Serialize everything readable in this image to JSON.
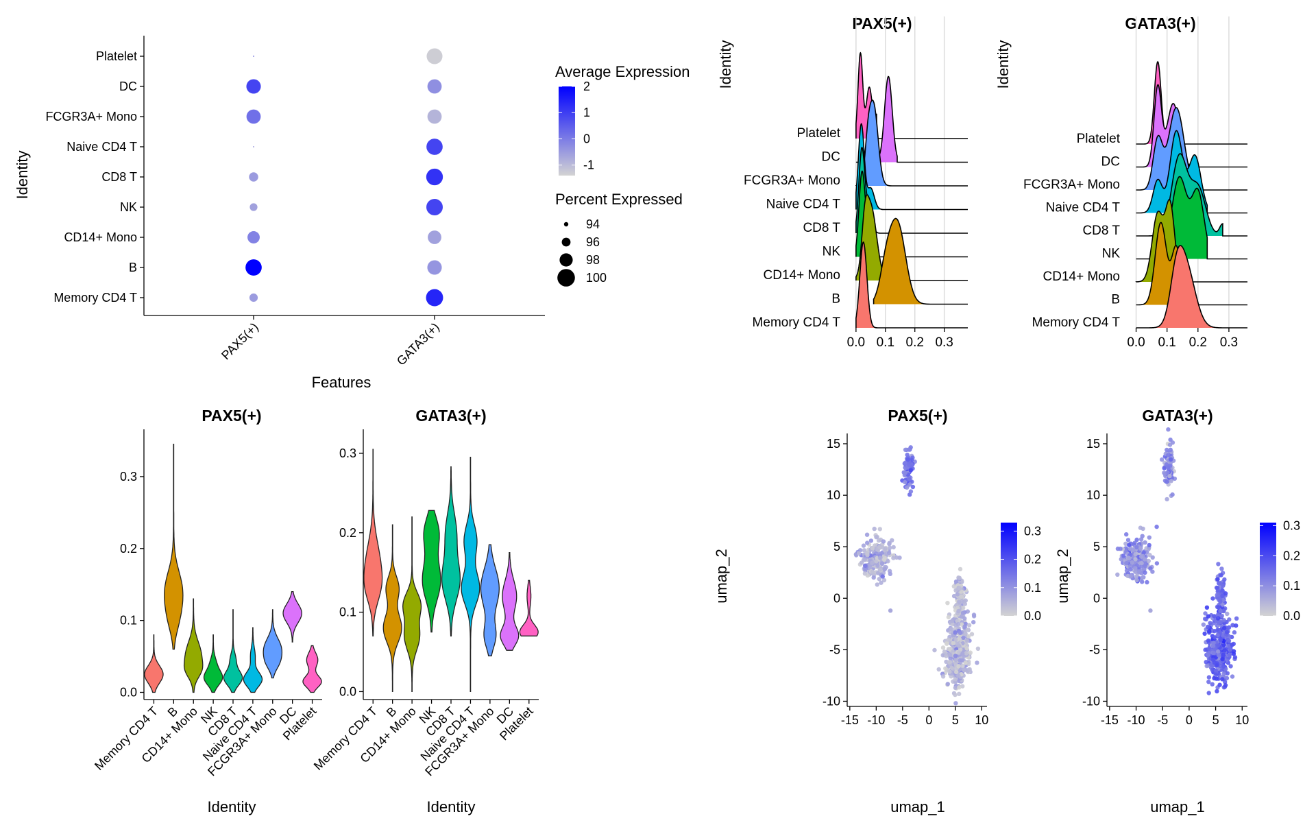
{
  "chart_data": [
    {
      "panel": "dotplot",
      "type": "scatter",
      "xlabel": "Features",
      "ylabel": "Identity",
      "features": [
        "PAX5(+)",
        "GATA3(+)"
      ],
      "identities": [
        "Platelet",
        "DC",
        "FCGR3A+ Mono",
        "Naive CD4 T",
        "CD8 T",
        "NK",
        "CD14+ Mono",
        "B",
        "Memory CD4 T"
      ],
      "points": [
        {
          "feature": "PAX5(+)",
          "identity": "Platelet",
          "avg_exp": -0.3,
          "pct": 92.6
        },
        {
          "feature": "PAX5(+)",
          "identity": "DC",
          "avg_exp": 0.9,
          "pct": 98.6
        },
        {
          "feature": "PAX5(+)",
          "identity": "FCGR3A+ Mono",
          "avg_exp": 0.2,
          "pct": 98.5
        },
        {
          "feature": "PAX5(+)",
          "identity": "Naive CD4 T",
          "avg_exp": -0.6,
          "pct": 92.6
        },
        {
          "feature": "PAX5(+)",
          "identity": "CD8 T",
          "avg_exp": -0.5,
          "pct": 96.2
        },
        {
          "feature": "PAX5(+)",
          "identity": "NK",
          "avg_exp": -0.6,
          "pct": 95.5
        },
        {
          "feature": "PAX5(+)",
          "identity": "CD14+ Mono",
          "avg_exp": -0.1,
          "pct": 97.6
        },
        {
          "feature": "PAX5(+)",
          "identity": "B",
          "avg_exp": 2.0,
          "pct": 99.4
        },
        {
          "feature": "PAX5(+)",
          "identity": "Memory CD4 T",
          "avg_exp": -0.5,
          "pct": 95.8
        },
        {
          "feature": "GATA3(+)",
          "identity": "Platelet",
          "avg_exp": -1.3,
          "pct": 99.2
        },
        {
          "feature": "GATA3(+)",
          "identity": "DC",
          "avg_exp": -0.3,
          "pct": 98.5
        },
        {
          "feature": "GATA3(+)",
          "identity": "FCGR3A+ Mono",
          "avg_exp": -0.9,
          "pct": 98.5
        },
        {
          "feature": "GATA3(+)",
          "identity": "Naive CD4 T",
          "avg_exp": 0.9,
          "pct": 99.4
        },
        {
          "feature": "GATA3(+)",
          "identity": "CD8 T",
          "avg_exp": 1.2,
          "pct": 99.6
        },
        {
          "feature": "GATA3(+)",
          "identity": "NK",
          "avg_exp": 0.9,
          "pct": 99.5
        },
        {
          "feature": "GATA3(+)",
          "identity": "CD14+ Mono",
          "avg_exp": -0.6,
          "pct": 98.2
        },
        {
          "feature": "GATA3(+)",
          "identity": "B",
          "avg_exp": -0.4,
          "pct": 98.6
        },
        {
          "feature": "GATA3(+)",
          "identity": "Memory CD4 T",
          "avg_exp": 1.4,
          "pct": 99.8
        }
      ],
      "color_legend": {
        "title": "Average Expression",
        "ticks": [
          2,
          1,
          0,
          -1
        ],
        "range": [
          -1.4,
          2.0
        ],
        "low": "#d3d3d3",
        "high": "#0000ff"
      },
      "size_legend": {
        "title": "Percent Expressed",
        "values": [
          94,
          96,
          98,
          100
        ]
      }
    },
    {
      "panel": "ridge",
      "type": "area",
      "title": "PAX5(+)",
      "ylabel": "Identity",
      "xticks": [
        0.0,
        0.1,
        0.2,
        0.3
      ],
      "xlim": [
        -0.03,
        0.38
      ],
      "tick_labels": [
        "0.0",
        "0.1",
        "0.2",
        "0.3"
      ],
      "identities": [
        "Platelet",
        "DC",
        "FCGR3A+ Mono",
        "Naive CD4 T",
        "CD8 T",
        "NK",
        "CD14+ Mono",
        "B",
        "Memory CD4 T"
      ],
      "series": [
        {
          "name": "Memory CD4 T",
          "color": "#F8766D",
          "peaks": [
            [
              0.025,
              0.012,
              1.0
            ]
          ],
          "max": 0.08
        },
        {
          "name": "B",
          "color": "#D39200",
          "peaks": [
            [
              0.14,
              0.028,
              0.9
            ],
            [
              0.1,
              0.02,
              0.3
            ]
          ],
          "min": 0.06,
          "max": 0.35
        },
        {
          "name": "CD14+ Mono",
          "color": "#93AA00",
          "peaks": [
            [
              0.05,
              0.02,
              0.9
            ],
            [
              0.03,
              0.01,
              0.4
            ]
          ],
          "max": 0.13
        },
        {
          "name": "NK",
          "color": "#00BA38",
          "peaks": [
            [
              0.02,
              0.01,
              1.0
            ],
            [
              0.04,
              0.01,
              0.3
            ]
          ],
          "max": 0.08
        },
        {
          "name": "CD8 T",
          "color": "#00C19F",
          "peaks": [
            [
              0.02,
              0.01,
              1.0
            ],
            [
              0.045,
              0.01,
              0.3
            ]
          ],
          "max": 0.11
        },
        {
          "name": "Naive CD4 T",
          "color": "#00B9E3",
          "peaks": [
            [
              0.018,
              0.01,
              1.0
            ],
            [
              0.05,
              0.012,
              0.25
            ]
          ],
          "max": 0.09
        },
        {
          "name": "FCGR3A+ Mono",
          "color": "#619CFF",
          "peaks": [
            [
              0.06,
              0.015,
              1.0
            ],
            [
              0.04,
              0.01,
              0.4
            ]
          ],
          "max": 0.12
        },
        {
          "name": "DC",
          "color": "#DB72FB",
          "peaks": [
            [
              0.11,
              0.013,
              1.0
            ],
            [
              0.05,
              0.012,
              0.4
            ]
          ],
          "max": 0.14
        },
        {
          "name": "Platelet",
          "color": "#FF61C3",
          "peaks": [
            [
              0.015,
              0.008,
              1.0
            ],
            [
              0.045,
              0.01,
              0.6
            ],
            [
              0.075,
              0.01,
              0.3
            ]
          ],
          "max": 0.07
        }
      ]
    },
    {
      "panel": "ridge",
      "type": "area",
      "title": "GATA3(+)",
      "ylabel": "Identity",
      "xticks": [
        0.0,
        0.1,
        0.2,
        0.3
      ],
      "xlim": [
        -0.03,
        0.36
      ],
      "tick_labels": [
        "0.0",
        "0.1",
        "0.2",
        "0.3"
      ],
      "identities": [
        "Platelet",
        "DC",
        "FCGR3A+ Mono",
        "Naive CD4 T",
        "CD8 T",
        "NK",
        "CD14+ Mono",
        "B",
        "Memory CD4 T"
      ],
      "series": [
        {
          "name": "Memory CD4 T",
          "color": "#F8766D",
          "peaks": [
            [
              0.16,
              0.03,
              1.0
            ],
            [
              0.13,
              0.02,
              0.6
            ]
          ],
          "max": 0.3
        },
        {
          "name": "B",
          "color": "#D39200",
          "peaks": [
            [
              0.08,
              0.018,
              1.0
            ],
            [
              0.13,
              0.015,
              0.7
            ]
          ],
          "max": 0.25
        },
        {
          "name": "CD14+ Mono",
          "color": "#93AA00",
          "peaks": [
            [
              0.07,
              0.018,
              0.9
            ],
            [
              0.11,
              0.015,
              1.0
            ]
          ],
          "max": 0.22
        },
        {
          "name": "NK",
          "color": "#00BA38",
          "peaks": [
            [
              0.14,
              0.025,
              1.0
            ],
            [
              0.2,
              0.02,
              0.8
            ]
          ],
          "max": 0.23
        },
        {
          "name": "CD8 T",
          "color": "#00C19F",
          "peaks": [
            [
              0.14,
              0.025,
              1.0
            ],
            [
              0.2,
              0.025,
              0.6
            ],
            [
              0.28,
              0.01,
              0.15
            ]
          ],
          "max": 0.28
        },
        {
          "name": "Naive CD4 T",
          "color": "#00B9E3",
          "peaks": [
            [
              0.13,
              0.02,
              1.0
            ],
            [
              0.19,
              0.02,
              0.7
            ],
            [
              0.07,
              0.015,
              0.4
            ]
          ],
          "max": 0.23
        },
        {
          "name": "FCGR3A+ Mono",
          "color": "#619CFF",
          "peaks": [
            [
              0.13,
              0.025,
              1.0
            ],
            [
              0.07,
              0.015,
              0.6
            ]
          ],
          "max": 0.21
        },
        {
          "name": "DC",
          "color": "#DB72FB",
          "peaks": [
            [
              0.07,
              0.012,
              1.0
            ],
            [
              0.12,
              0.02,
              0.8
            ]
          ],
          "max": 0.18
        },
        {
          "name": "Platelet",
          "color": "#FF61C3",
          "peaks": [
            [
              0.07,
              0.011,
              1.0
            ],
            [
              0.12,
              0.012,
              0.25
            ]
          ],
          "max": 0.14
        }
      ]
    },
    {
      "panel": "violin",
      "type": "violin",
      "title": "PAX5(+)",
      "xlabel": "Identity",
      "ylim": [
        -0.01,
        0.36
      ],
      "yticks": [
        0.0,
        0.1,
        0.2,
        0.3
      ],
      "ytick_labels": [
        "0.0",
        "0.1",
        "0.2",
        "0.3"
      ],
      "categories": [
        "Memory CD4 T",
        "B",
        "CD14+ Mono",
        "NK",
        "CD8 T",
        "Naive CD4 T",
        "FCGR3A+ Mono",
        "DC",
        "Platelet"
      ],
      "colors": [
        "#F8766D",
        "#D39200",
        "#93AA00",
        "#00BA38",
        "#00C19F",
        "#00B9E3",
        "#619CFF",
        "#DB72FB",
        "#FF61C3"
      ],
      "violins": [
        {
          "min": 0.0,
          "max": 0.08,
          "modes": [
            [
              0.025,
              0.012,
              1.0
            ]
          ]
        },
        {
          "min": 0.06,
          "max": 0.345,
          "modes": [
            [
              0.14,
              0.028,
              0.9
            ],
            [
              0.1,
              0.02,
              0.3
            ]
          ]
        },
        {
          "min": 0.0,
          "max": 0.13,
          "modes": [
            [
              0.05,
              0.02,
              0.9
            ],
            [
              0.03,
              0.01,
              0.4
            ]
          ]
        },
        {
          "min": 0.0,
          "max": 0.08,
          "modes": [
            [
              0.02,
              0.01,
              1.0
            ],
            [
              0.04,
              0.01,
              0.3
            ]
          ]
        },
        {
          "min": 0.0,
          "max": 0.115,
          "modes": [
            [
              0.02,
              0.01,
              1.0
            ],
            [
              0.045,
              0.01,
              0.3
            ]
          ]
        },
        {
          "min": 0.0,
          "max": 0.09,
          "modes": [
            [
              0.018,
              0.01,
              1.0
            ],
            [
              0.05,
              0.012,
              0.25
            ]
          ]
        },
        {
          "min": 0.02,
          "max": 0.115,
          "modes": [
            [
              0.06,
              0.015,
              1.0
            ],
            [
              0.04,
              0.01,
              0.4
            ]
          ]
        },
        {
          "min": 0.07,
          "max": 0.14,
          "modes": [
            [
              0.11,
              0.013,
              1.0
            ]
          ]
        },
        {
          "min": 0.0,
          "max": 0.065,
          "modes": [
            [
              0.015,
              0.008,
              1.0
            ],
            [
              0.045,
              0.01,
              0.6
            ]
          ]
        }
      ]
    },
    {
      "panel": "violin",
      "type": "violin",
      "title": "GATA3(+)",
      "xlabel": "Identity",
      "ylim": [
        -0.01,
        0.325
      ],
      "yticks": [
        0.0,
        0.1,
        0.2,
        0.3
      ],
      "ytick_labels": [
        "0.0",
        "0.1",
        "0.2",
        "0.3"
      ],
      "categories": [
        "Memory CD4 T",
        "B",
        "CD14+ Mono",
        "NK",
        "CD8 T",
        "Naive CD4 T",
        "FCGR3A+ Mono",
        "DC",
        "Platelet"
      ],
      "colors": [
        "#F8766D",
        "#D39200",
        "#93AA00",
        "#00BA38",
        "#00C19F",
        "#00B9E3",
        "#619CFF",
        "#DB72FB",
        "#FF61C3"
      ],
      "violins": [
        {
          "min": 0.07,
          "max": 0.305,
          "modes": [
            [
              0.16,
              0.03,
              1.0
            ],
            [
              0.13,
              0.02,
              0.6
            ]
          ]
        },
        {
          "min": 0.0,
          "max": 0.21,
          "modes": [
            [
              0.08,
              0.018,
              1.0
            ],
            [
              0.13,
              0.015,
              0.7
            ]
          ]
        },
        {
          "min": 0.0,
          "max": 0.22,
          "modes": [
            [
              0.07,
              0.018,
              0.9
            ],
            [
              0.11,
              0.015,
              1.0
            ]
          ]
        },
        {
          "min": 0.075,
          "max": 0.228,
          "modes": [
            [
              0.14,
              0.025,
              1.0
            ],
            [
              0.2,
              0.02,
              0.8
            ]
          ]
        },
        {
          "min": 0.07,
          "max": 0.283,
          "modes": [
            [
              0.14,
              0.025,
              1.0
            ],
            [
              0.2,
              0.025,
              0.6
            ]
          ]
        },
        {
          "min": 0.0,
          "max": 0.295,
          "modes": [
            [
              0.13,
              0.02,
              1.0
            ],
            [
              0.19,
              0.02,
              0.7
            ]
          ]
        },
        {
          "min": 0.045,
          "max": 0.185,
          "modes": [
            [
              0.13,
              0.025,
              1.0
            ],
            [
              0.07,
              0.015,
              0.6
            ]
          ]
        },
        {
          "min": 0.052,
          "max": 0.175,
          "modes": [
            [
              0.07,
              0.012,
              1.0
            ],
            [
              0.12,
              0.02,
              0.8
            ]
          ]
        },
        {
          "min": 0.07,
          "max": 0.14,
          "modes": [
            [
              0.075,
              0.009,
              1.0
            ],
            [
              0.12,
              0.012,
              0.2
            ]
          ]
        }
      ]
    },
    {
      "panel": "feature",
      "type": "scatter",
      "title": "PAX5(+)",
      "xlabel": "umap_1",
      "ylabel": "umap_2",
      "xlim": [
        -15.5,
        11
      ],
      "ylim": [
        -10.5,
        16
      ],
      "xticks": [
        -15,
        -10,
        -5,
        0,
        5,
        10
      ],
      "yticks": [
        -10,
        -5,
        0,
        5,
        10,
        15
      ],
      "xtick_labels": [
        "-15",
        "-10",
        "-5",
        "0",
        "5",
        "10"
      ],
      "ytick_labels": [
        "-10",
        "-5",
        "0",
        "5",
        "10",
        "15"
      ],
      "colorbar": {
        "ticks": [
          0.3,
          0.2,
          0.1,
          0.0
        ],
        "tick_labels": [
          "0.3",
          "0.2",
          "0.1",
          "0.0"
        ],
        "range": [
          0,
          0.33
        ],
        "low": "#d3d3d3",
        "high": "#0000ff"
      },
      "clusters": [
        {
          "cx": -3.8,
          "cy": 12.5,
          "rx": 0.9,
          "ry": 2.2,
          "n": 90,
          "mean": 0.15
        },
        {
          "cx": -10.0,
          "cy": 3.8,
          "rx": 2.9,
          "ry": 2.0,
          "n": 200,
          "mean": 0.05
        },
        {
          "cx": 5.5,
          "cy": -5.0,
          "rx": 2.2,
          "ry": 3.0,
          "n": 400,
          "mean": 0.04
        },
        {
          "cx": 5.9,
          "cy": 0.0,
          "rx": 0.8,
          "ry": 2.0,
          "n": 90,
          "mean": 0.04
        }
      ]
    },
    {
      "panel": "feature",
      "type": "scatter",
      "title": "GATA3(+)",
      "xlabel": "umap_1",
      "ylabel": "umap_2",
      "xlim": [
        -15.5,
        11
      ],
      "ylim": [
        -10.5,
        16
      ],
      "xticks": [
        -15,
        -10,
        -5,
        0,
        5,
        10
      ],
      "yticks": [
        -10,
        -5,
        0,
        5,
        10,
        15
      ],
      "xtick_labels": [
        "-15",
        "-10",
        "-5",
        "0",
        "5",
        "10"
      ],
      "ytick_labels": [
        "-10",
        "-5",
        "0",
        "5",
        "10",
        "15"
      ],
      "colorbar": {
        "ticks": [
          0.3,
          0.2,
          0.1,
          0.0
        ],
        "tick_labels": [
          "0.3",
          "0.2",
          "0.1",
          "0.0"
        ],
        "range": [
          0,
          0.31
        ],
        "low": "#d3d3d3",
        "high": "#0000ff"
      },
      "clusters": [
        {
          "cx": -3.8,
          "cy": 12.5,
          "rx": 0.9,
          "ry": 2.2,
          "n": 90,
          "mean": 0.1
        },
        {
          "cx": -10.0,
          "cy": 3.8,
          "rx": 2.9,
          "ry": 2.0,
          "n": 200,
          "mean": 0.1
        },
        {
          "cx": 5.5,
          "cy": -5.0,
          "rx": 2.2,
          "ry": 3.0,
          "n": 400,
          "mean": 0.16
        },
        {
          "cx": 5.9,
          "cy": 0.0,
          "rx": 0.8,
          "ry": 2.0,
          "n": 90,
          "mean": 0.15
        }
      ]
    }
  ]
}
